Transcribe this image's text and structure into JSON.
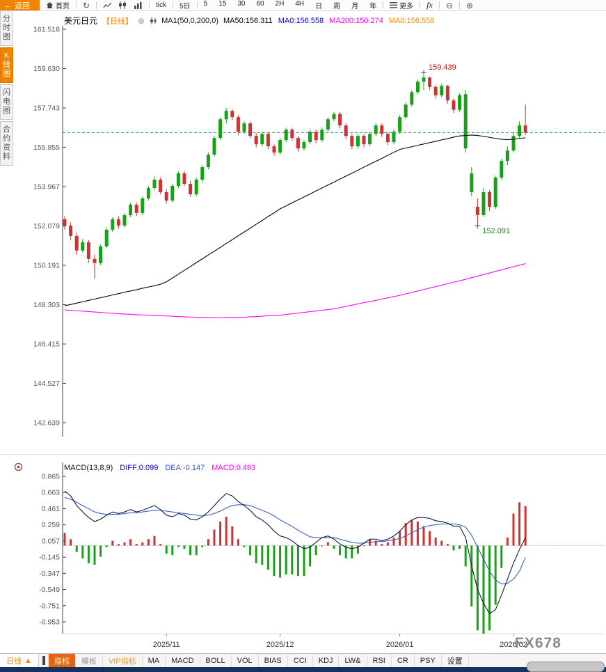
{
  "window": {
    "watermark": "FX678"
  },
  "top_toolbar": {
    "back": "返回",
    "home": "首页",
    "tick": "tick",
    "five_day": "5日",
    "intervals": [
      "5",
      "15",
      "30",
      "60",
      "2H",
      "4H",
      "日",
      "周",
      "月",
      "年"
    ],
    "more": "更多",
    "fx": "fx",
    "zoom_out_glyph": "⊖",
    "zoom_in_glyph": "⊕"
  },
  "left_tabs": [
    {
      "label": "分时图",
      "active": false
    },
    {
      "label": "K线图",
      "active": true
    },
    {
      "label": "闪电图",
      "active": false
    },
    {
      "label": "合约资料",
      "active": false
    }
  ],
  "legend": {
    "symbol": "美元日元",
    "period": "【日线】",
    "add_glyph": "⊕",
    "ma_formula": "MA1(50,0,200,0)",
    "items": [
      {
        "text": "MA50:156.311",
        "color": "#000000"
      },
      {
        "text": "MA0:156.558",
        "color": "#0000dd"
      },
      {
        "text": "MA200:150.274",
        "color": "#ff00ff"
      },
      {
        "text": "MA0:156.558",
        "color": "#ff8800"
      }
    ]
  },
  "macd_legend": {
    "title": "MACD(13,8,9)",
    "items": [
      {
        "text": "DIFF:0.099",
        "color": "#0000cc"
      },
      {
        "text": "DEA:-0.147",
        "color": "#3355cc"
      },
      {
        "text": "MACD:0.493",
        "color": "#ff00ff"
      }
    ]
  },
  "bottom_toolbar": {
    "period_label": "日线",
    "period_arrow": "▲",
    "tabs": [
      {
        "label": "指标",
        "style": "selected"
      },
      {
        "label": "模板",
        "style": "muted"
      },
      {
        "label": "VIP指标",
        "style": "vip"
      },
      {
        "label": "MA",
        "style": ""
      },
      {
        "label": "MACD",
        "style": ""
      },
      {
        "label": "BOLL",
        "style": ""
      },
      {
        "label": "VOL",
        "style": ""
      },
      {
        "label": "BIAS",
        "style": ""
      },
      {
        "label": "CCI",
        "style": ""
      },
      {
        "label": "KDJ",
        "style": ""
      },
      {
        "label": "LW&",
        "style": ""
      },
      {
        "label": "RSI",
        "style": ""
      },
      {
        "label": "CR",
        "style": ""
      },
      {
        "label": "PSY",
        "style": ""
      },
      {
        "label": "设置",
        "style": ""
      }
    ]
  },
  "chart_data": {
    "type": "candlestick+macd",
    "symbol": "美元日元",
    "interval": "日线",
    "up_color": "#18a018",
    "down_color": "#cc3333",
    "current_price": 156.558,
    "current_price_line_color": "#2e9e9e",
    "price_axis": {
      "max": 161.518,
      "min": 142.639,
      "ticks": [
        "161.518",
        "159.630",
        "157.743",
        "155.855",
        "153.967",
        "152.079",
        "150.191",
        "148.303",
        "146.415",
        "144.527",
        "142.639"
      ]
    },
    "x_labels": [
      {
        "label": "2025/11",
        "index": 17
      },
      {
        "label": "2025/12",
        "index": 36
      },
      {
        "label": "2026/01",
        "index": 56
      },
      {
        "label": "2026/02",
        "index": 75
      }
    ],
    "high_annotation": {
      "text": "159.439",
      "price": 159.439,
      "index": 60,
      "color": "#cc0000"
    },
    "low_annotation": {
      "text": "152.091",
      "price": 152.091,
      "index": 69,
      "color": "#1d8a1d"
    },
    "candles": [
      [
        152.4,
        152.55,
        151.9,
        152.1
      ],
      [
        152.1,
        152.25,
        151.4,
        151.6
      ],
      [
        151.6,
        151.75,
        150.7,
        150.9
      ],
      [
        150.9,
        151.45,
        150.8,
        151.3
      ],
      [
        151.3,
        151.4,
        150.3,
        150.5
      ],
      [
        150.5,
        150.7,
        149.55,
        150.3
      ],
      [
        150.3,
        151.2,
        150.2,
        151.1
      ],
      [
        151.1,
        152.0,
        151.0,
        151.9
      ],
      [
        151.9,
        152.5,
        151.8,
        152.4
      ],
      [
        152.4,
        152.55,
        151.95,
        152.1
      ],
      [
        152.1,
        152.7,
        152.0,
        152.6
      ],
      [
        152.6,
        153.2,
        152.5,
        153.1
      ],
      [
        153.1,
        153.2,
        152.55,
        152.7
      ],
      [
        152.7,
        153.5,
        152.6,
        153.4
      ],
      [
        153.4,
        154.0,
        153.3,
        153.9
      ],
      [
        153.9,
        154.45,
        153.8,
        154.3
      ],
      [
        154.3,
        154.4,
        153.6,
        153.7
      ],
      [
        153.7,
        153.85,
        153.15,
        153.3
      ],
      [
        153.3,
        154.1,
        153.2,
        154.0
      ],
      [
        154.0,
        154.7,
        153.9,
        154.6
      ],
      [
        154.6,
        154.7,
        154.0,
        154.1
      ],
      [
        154.1,
        154.25,
        153.5,
        153.6
      ],
      [
        153.6,
        154.4,
        153.5,
        154.3
      ],
      [
        154.3,
        155.0,
        154.2,
        154.9
      ],
      [
        154.9,
        155.6,
        154.8,
        155.5
      ],
      [
        155.5,
        156.4,
        155.4,
        156.3
      ],
      [
        156.3,
        157.3,
        156.2,
        157.2
      ],
      [
        157.2,
        157.74,
        157.0,
        157.6
      ],
      [
        157.6,
        157.7,
        157.15,
        157.3
      ],
      [
        157.3,
        157.4,
        156.45,
        156.6
      ],
      [
        156.6,
        157.1,
        156.5,
        157.0
      ],
      [
        157.0,
        157.1,
        156.3,
        156.4
      ],
      [
        156.4,
        156.55,
        155.85,
        156.0
      ],
      [
        156.0,
        156.6,
        155.9,
        156.5
      ],
      [
        156.5,
        156.6,
        155.75,
        155.9
      ],
      [
        155.9,
        156.0,
        155.45,
        155.6
      ],
      [
        155.6,
        156.3,
        155.5,
        156.2
      ],
      [
        156.2,
        156.8,
        156.1,
        156.7
      ],
      [
        156.7,
        156.8,
        156.15,
        156.3
      ],
      [
        156.3,
        156.4,
        155.65,
        155.8
      ],
      [
        155.8,
        156.2,
        155.7,
        156.1
      ],
      [
        156.1,
        156.7,
        156.0,
        156.6
      ],
      [
        156.6,
        156.7,
        156.05,
        156.2
      ],
      [
        156.2,
        156.8,
        156.1,
        156.7
      ],
      [
        156.7,
        157.3,
        156.6,
        157.2
      ],
      [
        157.2,
        157.55,
        157.1,
        157.45
      ],
      [
        157.45,
        157.55,
        156.75,
        156.9
      ],
      [
        156.9,
        157.0,
        156.25,
        156.4
      ],
      [
        156.4,
        156.5,
        155.75,
        155.9
      ],
      [
        155.9,
        156.5,
        155.8,
        156.4
      ],
      [
        156.4,
        156.5,
        155.85,
        156.0
      ],
      [
        156.0,
        156.6,
        155.9,
        156.5
      ],
      [
        156.5,
        157.0,
        156.4,
        156.9
      ],
      [
        156.9,
        157.0,
        156.35,
        156.5
      ],
      [
        156.5,
        156.6,
        155.95,
        156.1
      ],
      [
        156.1,
        156.7,
        156.0,
        156.6
      ],
      [
        156.6,
        157.4,
        156.5,
        157.3
      ],
      [
        157.3,
        158.0,
        157.2,
        157.9
      ],
      [
        157.9,
        158.6,
        157.8,
        158.5
      ],
      [
        158.5,
        159.1,
        158.4,
        159.0
      ],
      [
        159.0,
        159.44,
        158.6,
        159.2
      ],
      [
        159.2,
        159.25,
        158.6,
        158.75
      ],
      [
        158.75,
        158.85,
        158.2,
        158.35
      ],
      [
        158.35,
        158.9,
        158.25,
        158.8
      ],
      [
        158.8,
        158.85,
        157.95,
        158.1
      ],
      [
        158.1,
        158.2,
        157.5,
        157.65
      ],
      [
        157.65,
        158.45,
        157.55,
        158.35
      ],
      [
        155.8,
        158.6,
        155.6,
        158.4
      ],
      [
        153.7,
        154.9,
        153.5,
        154.6
      ],
      [
        153.0,
        153.4,
        152.09,
        152.6
      ],
      [
        152.6,
        153.9,
        152.5,
        153.7
      ],
      [
        153.7,
        153.8,
        152.8,
        153.0
      ],
      [
        153.0,
        154.5,
        152.9,
        154.4
      ],
      [
        154.4,
        155.3,
        154.3,
        155.2
      ],
      [
        155.2,
        155.9,
        155.0,
        155.7
      ],
      [
        155.7,
        156.6,
        155.6,
        156.4
      ],
      [
        156.4,
        157.1,
        156.3,
        156.9
      ],
      [
        156.9,
        157.9,
        156.45,
        156.56
      ]
    ],
    "ma_colors": {
      "ma50": "#000000",
      "ma200": "#ff00ff"
    },
    "ma50": [
      148.25,
      148.31,
      148.38,
      148.44,
      148.51,
      148.57,
      148.64,
      148.7,
      148.77,
      148.83,
      148.9,
      148.96,
      149.02,
      149.09,
      149.15,
      149.21,
      149.28,
      149.4,
      149.58,
      149.77,
      149.95,
      150.13,
      150.32,
      150.5,
      150.69,
      150.87,
      151.05,
      151.24,
      151.42,
      151.61,
      151.79,
      151.97,
      152.16,
      152.34,
      152.53,
      152.71,
      152.9,
      153.04,
      153.19,
      153.33,
      153.47,
      153.61,
      153.76,
      153.9,
      154.04,
      154.18,
      154.33,
      154.47,
      154.61,
      154.75,
      154.9,
      155.04,
      155.18,
      155.32,
      155.47,
      155.61,
      155.75,
      155.82,
      155.88,
      155.95,
      156.01,
      156.08,
      156.14,
      156.21,
      156.27,
      156.34,
      156.4,
      156.42,
      156.44,
      156.42,
      156.38,
      156.33,
      156.28,
      156.24,
      156.22,
      156.24,
      156.28,
      156.31
    ],
    "ma200": [
      148.05,
      148.03,
      148.01,
      147.99,
      147.97,
      147.95,
      147.93,
      147.91,
      147.89,
      147.87,
      147.85,
      147.84,
      147.82,
      147.81,
      147.8,
      147.78,
      147.77,
      147.76,
      147.75,
      147.73,
      147.72,
      147.71,
      147.7,
      147.69,
      147.69,
      147.68,
      147.68,
      147.69,
      147.69,
      147.7,
      147.7,
      147.72,
      147.73,
      147.75,
      147.77,
      147.78,
      147.8,
      147.83,
      147.87,
      147.9,
      147.93,
      147.97,
      148.0,
      148.03,
      148.07,
      148.1,
      148.16,
      148.22,
      148.28,
      148.34,
      148.4,
      148.45,
      148.51,
      148.57,
      148.63,
      148.69,
      148.75,
      148.82,
      148.89,
      148.96,
      149.03,
      149.1,
      149.17,
      149.24,
      149.31,
      149.38,
      149.45,
      149.52,
      149.6,
      149.67,
      149.75,
      149.82,
      149.9,
      149.97,
      150.05,
      150.12,
      150.2,
      150.27
    ],
    "macd": {
      "axis_max": 0.865,
      "axis_min": -0.953,
      "axis_ticks": [
        "0.865",
        "0.663",
        "0.461",
        "0.259",
        "0.057",
        "-0.145",
        "-0.347",
        "-0.549",
        "-0.751",
        "-0.953"
      ],
      "pos_color": "#cc3333",
      "neg_color": "#18a018",
      "diff_color": "#111144",
      "dea_color": "#3a5fcd",
      "diff": [
        0.68,
        0.62,
        0.5,
        0.42,
        0.35,
        0.3,
        0.33,
        0.38,
        0.42,
        0.4,
        0.42,
        0.45,
        0.42,
        0.44,
        0.47,
        0.5,
        0.45,
        0.38,
        0.36,
        0.4,
        0.38,
        0.33,
        0.32,
        0.36,
        0.42,
        0.5,
        0.58,
        0.65,
        0.62,
        0.55,
        0.5,
        0.44,
        0.36,
        0.32,
        0.26,
        0.18,
        0.12,
        0.1,
        0.06,
        0.0,
        -0.04,
        -0.02,
        0.04,
        0.1,
        0.12,
        0.08,
        0.02,
        -0.02,
        -0.04,
        -0.02,
        0.03,
        0.08,
        0.08,
        0.06,
        0.08,
        0.12,
        0.18,
        0.26,
        0.32,
        0.35,
        0.35,
        0.34,
        0.31,
        0.3,
        0.28,
        0.24,
        0.24,
        0.1,
        -0.25,
        -0.55,
        -0.72,
        -0.85,
        -0.8,
        -0.62,
        -0.42,
        -0.22,
        -0.05,
        0.099
      ],
      "dea": [
        0.6,
        0.58,
        0.54,
        0.5,
        0.46,
        0.42,
        0.4,
        0.39,
        0.39,
        0.39,
        0.4,
        0.41,
        0.41,
        0.42,
        0.43,
        0.44,
        0.44,
        0.43,
        0.42,
        0.41,
        0.4,
        0.39,
        0.38,
        0.37,
        0.38,
        0.4,
        0.43,
        0.47,
        0.5,
        0.51,
        0.51,
        0.5,
        0.47,
        0.44,
        0.41,
        0.37,
        0.32,
        0.28,
        0.24,
        0.19,
        0.15,
        0.11,
        0.1,
        0.1,
        0.1,
        0.1,
        0.08,
        0.06,
        0.04,
        0.03,
        0.03,
        0.04,
        0.05,
        0.05,
        0.06,
        0.07,
        0.09,
        0.12,
        0.16,
        0.2,
        0.23,
        0.25,
        0.26,
        0.27,
        0.27,
        0.27,
        0.26,
        0.23,
        0.13,
        -0.02,
        -0.17,
        -0.32,
        -0.43,
        -0.48,
        -0.47,
        -0.42,
        -0.32,
        -0.147
      ]
    }
  }
}
